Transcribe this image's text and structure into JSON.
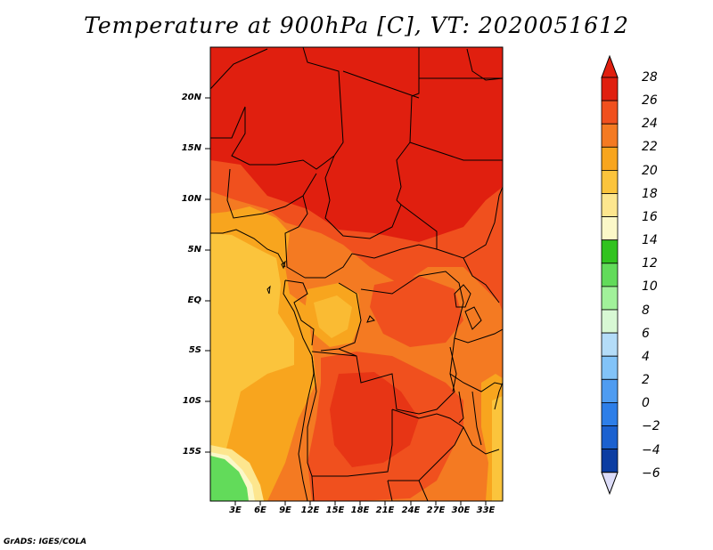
{
  "title": "Temperature at 900hPa [C], VT: 2020051612",
  "credit": "GrADS: IGES/COLA",
  "map": {
    "lat_labels": [
      "20N",
      "15N",
      "10N",
      "5N",
      "EQ",
      "5S",
      "10S",
      "15S"
    ],
    "lon_labels": [
      "3E",
      "6E",
      "9E",
      "12E",
      "15E",
      "18E",
      "21E",
      "24E",
      "27E",
      "30E",
      "33E"
    ],
    "extent": {
      "lon_min": 0,
      "lon_max": 35,
      "lat_min": -20,
      "lat_max": 25
    }
  },
  "colorbar": {
    "labels": [
      "28",
      "26",
      "24",
      "22",
      "20",
      "18",
      "16",
      "14",
      "12",
      "10",
      "8",
      "6",
      "4",
      "2",
      "0",
      "−2",
      "−4",
      "−6"
    ],
    "colors": [
      "#e01f0f",
      "#f0501e",
      "#f47a22",
      "#f8a51e",
      "#fbc43c",
      "#fde68e",
      "#fbf8c8",
      "#31c31f",
      "#62db5a",
      "#a1f19a",
      "#d8f8d4",
      "#b4dcf8",
      "#82c3f8",
      "#4f9cf1",
      "#2d7ee8",
      "#1b61d0",
      "#0c3da2",
      "#06187a"
    ]
  }
}
